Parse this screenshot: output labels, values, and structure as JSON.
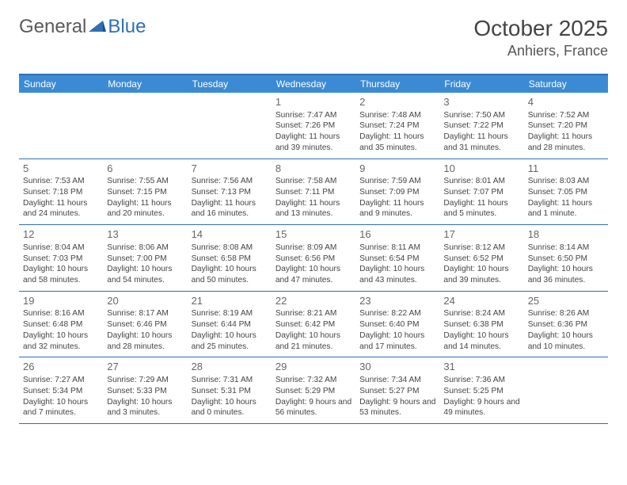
{
  "brand": {
    "word1": "General",
    "word2": "Blue"
  },
  "header": {
    "month": "October 2025",
    "location": "Anhiers, France"
  },
  "colors": {
    "accent": "#2e6fb4",
    "header_bg": "#3b8bd4",
    "text": "#444444",
    "muted": "#666666",
    "background": "#ffffff"
  },
  "typography": {
    "title_fontsize": 28,
    "location_fontsize": 18,
    "dow_fontsize": 12,
    "cell_fontsize": 10.2
  },
  "layout": {
    "columns": 7,
    "rows": 5
  },
  "days_of_week": [
    "Sunday",
    "Monday",
    "Tuesday",
    "Wednesday",
    "Thursday",
    "Friday",
    "Saturday"
  ],
  "weeks": [
    [
      null,
      null,
      null,
      {
        "n": "1",
        "sr": "Sunrise: 7:47 AM",
        "ss": "Sunset: 7:26 PM",
        "dl": "Daylight: 11 hours and 39 minutes."
      },
      {
        "n": "2",
        "sr": "Sunrise: 7:48 AM",
        "ss": "Sunset: 7:24 PM",
        "dl": "Daylight: 11 hours and 35 minutes."
      },
      {
        "n": "3",
        "sr": "Sunrise: 7:50 AM",
        "ss": "Sunset: 7:22 PM",
        "dl": "Daylight: 11 hours and 31 minutes."
      },
      {
        "n": "4",
        "sr": "Sunrise: 7:52 AM",
        "ss": "Sunset: 7:20 PM",
        "dl": "Daylight: 11 hours and 28 minutes."
      }
    ],
    [
      {
        "n": "5",
        "sr": "Sunrise: 7:53 AM",
        "ss": "Sunset: 7:18 PM",
        "dl": "Daylight: 11 hours and 24 minutes."
      },
      {
        "n": "6",
        "sr": "Sunrise: 7:55 AM",
        "ss": "Sunset: 7:15 PM",
        "dl": "Daylight: 11 hours and 20 minutes."
      },
      {
        "n": "7",
        "sr": "Sunrise: 7:56 AM",
        "ss": "Sunset: 7:13 PM",
        "dl": "Daylight: 11 hours and 16 minutes."
      },
      {
        "n": "8",
        "sr": "Sunrise: 7:58 AM",
        "ss": "Sunset: 7:11 PM",
        "dl": "Daylight: 11 hours and 13 minutes."
      },
      {
        "n": "9",
        "sr": "Sunrise: 7:59 AM",
        "ss": "Sunset: 7:09 PM",
        "dl": "Daylight: 11 hours and 9 minutes."
      },
      {
        "n": "10",
        "sr": "Sunrise: 8:01 AM",
        "ss": "Sunset: 7:07 PM",
        "dl": "Daylight: 11 hours and 5 minutes."
      },
      {
        "n": "11",
        "sr": "Sunrise: 8:03 AM",
        "ss": "Sunset: 7:05 PM",
        "dl": "Daylight: 11 hours and 1 minute."
      }
    ],
    [
      {
        "n": "12",
        "sr": "Sunrise: 8:04 AM",
        "ss": "Sunset: 7:03 PM",
        "dl": "Daylight: 10 hours and 58 minutes."
      },
      {
        "n": "13",
        "sr": "Sunrise: 8:06 AM",
        "ss": "Sunset: 7:00 PM",
        "dl": "Daylight: 10 hours and 54 minutes."
      },
      {
        "n": "14",
        "sr": "Sunrise: 8:08 AM",
        "ss": "Sunset: 6:58 PM",
        "dl": "Daylight: 10 hours and 50 minutes."
      },
      {
        "n": "15",
        "sr": "Sunrise: 8:09 AM",
        "ss": "Sunset: 6:56 PM",
        "dl": "Daylight: 10 hours and 47 minutes."
      },
      {
        "n": "16",
        "sr": "Sunrise: 8:11 AM",
        "ss": "Sunset: 6:54 PM",
        "dl": "Daylight: 10 hours and 43 minutes."
      },
      {
        "n": "17",
        "sr": "Sunrise: 8:12 AM",
        "ss": "Sunset: 6:52 PM",
        "dl": "Daylight: 10 hours and 39 minutes."
      },
      {
        "n": "18",
        "sr": "Sunrise: 8:14 AM",
        "ss": "Sunset: 6:50 PM",
        "dl": "Daylight: 10 hours and 36 minutes."
      }
    ],
    [
      {
        "n": "19",
        "sr": "Sunrise: 8:16 AM",
        "ss": "Sunset: 6:48 PM",
        "dl": "Daylight: 10 hours and 32 minutes."
      },
      {
        "n": "20",
        "sr": "Sunrise: 8:17 AM",
        "ss": "Sunset: 6:46 PM",
        "dl": "Daylight: 10 hours and 28 minutes."
      },
      {
        "n": "21",
        "sr": "Sunrise: 8:19 AM",
        "ss": "Sunset: 6:44 PM",
        "dl": "Daylight: 10 hours and 25 minutes."
      },
      {
        "n": "22",
        "sr": "Sunrise: 8:21 AM",
        "ss": "Sunset: 6:42 PM",
        "dl": "Daylight: 10 hours and 21 minutes."
      },
      {
        "n": "23",
        "sr": "Sunrise: 8:22 AM",
        "ss": "Sunset: 6:40 PM",
        "dl": "Daylight: 10 hours and 17 minutes."
      },
      {
        "n": "24",
        "sr": "Sunrise: 8:24 AM",
        "ss": "Sunset: 6:38 PM",
        "dl": "Daylight: 10 hours and 14 minutes."
      },
      {
        "n": "25",
        "sr": "Sunrise: 8:26 AM",
        "ss": "Sunset: 6:36 PM",
        "dl": "Daylight: 10 hours and 10 minutes."
      }
    ],
    [
      {
        "n": "26",
        "sr": "Sunrise: 7:27 AM",
        "ss": "Sunset: 5:34 PM",
        "dl": "Daylight: 10 hours and 7 minutes."
      },
      {
        "n": "27",
        "sr": "Sunrise: 7:29 AM",
        "ss": "Sunset: 5:33 PM",
        "dl": "Daylight: 10 hours and 3 minutes."
      },
      {
        "n": "28",
        "sr": "Sunrise: 7:31 AM",
        "ss": "Sunset: 5:31 PM",
        "dl": "Daylight: 10 hours and 0 minutes."
      },
      {
        "n": "29",
        "sr": "Sunrise: 7:32 AM",
        "ss": "Sunset: 5:29 PM",
        "dl": "Daylight: 9 hours and 56 minutes."
      },
      {
        "n": "30",
        "sr": "Sunrise: 7:34 AM",
        "ss": "Sunset: 5:27 PM",
        "dl": "Daylight: 9 hours and 53 minutes."
      },
      {
        "n": "31",
        "sr": "Sunrise: 7:36 AM",
        "ss": "Sunset: 5:25 PM",
        "dl": "Daylight: 9 hours and 49 minutes."
      },
      null
    ]
  ]
}
